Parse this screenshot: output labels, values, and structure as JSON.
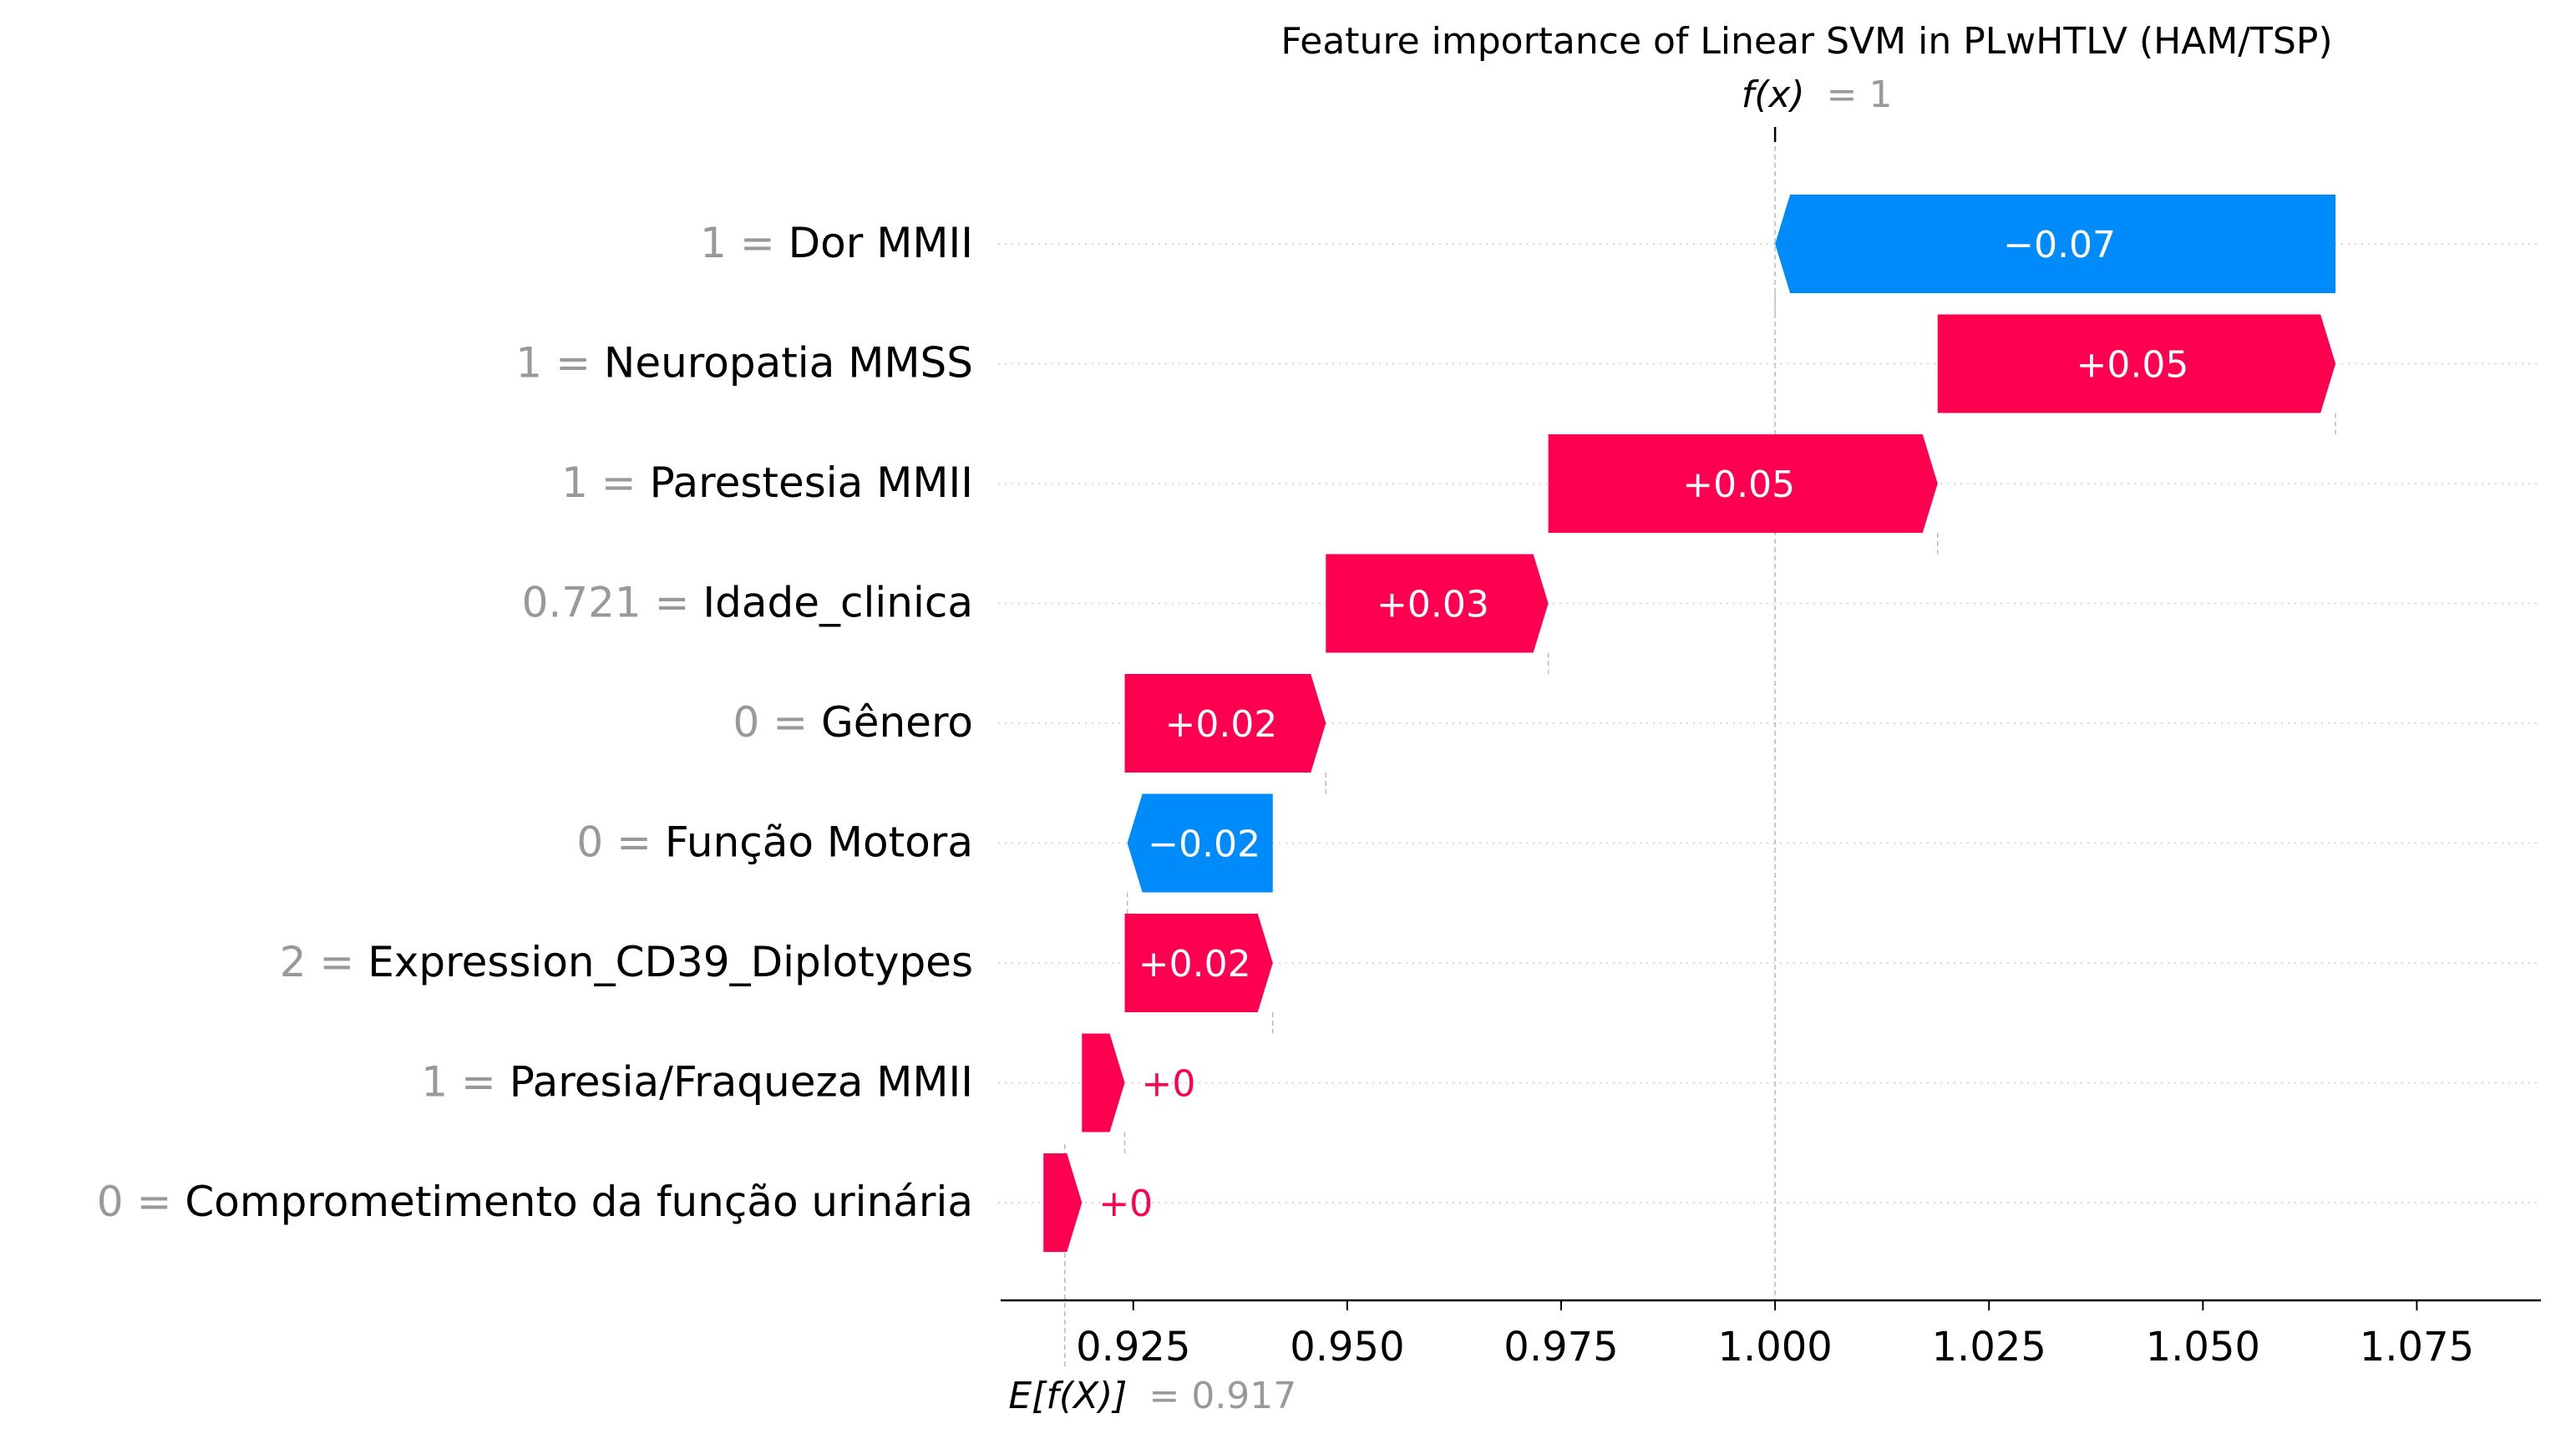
{
  "chart_data": {
    "type": "waterfall",
    "title": "Feature importance of Linear SVM in PLwHTLV (HAM/TSP)",
    "fx": {
      "label": "f(x)",
      "value_text": "= 1",
      "value": 1.0
    },
    "base": {
      "label": "E[f(X)]",
      "value_text": "= 0.917",
      "value": 0.917
    },
    "xlim": [
      0.9095,
      1.0895
    ],
    "xticks": [
      "0.925",
      "0.950",
      "0.975",
      "1.000",
      "1.025",
      "1.050",
      "1.075"
    ],
    "xtick_values": [
      0.925,
      0.95,
      0.975,
      1.0,
      1.025,
      1.05,
      1.075
    ],
    "colors": {
      "positive": "#ff0051",
      "negative": "#008bfb",
      "value_gray": "#999999",
      "text": "#000000"
    },
    "features": [
      {
        "value": "1",
        "name": "Dor MMII",
        "shap": -0.0655,
        "label": "−0.07",
        "start": 1.0655,
        "end": 1.0
      },
      {
        "value": "1",
        "name": "Neuropatia MMSS",
        "shap": 0.0465,
        "label": "+0.05",
        "start": 1.019,
        "end": 1.0655
      },
      {
        "value": "1",
        "name": "Parestesia MMII",
        "shap": 0.0455,
        "label": "+0.05",
        "start": 0.9735,
        "end": 1.019
      },
      {
        "value": "0.721",
        "name": "Idade_clinica",
        "shap": 0.026,
        "label": "+0.03",
        "start": 0.9475,
        "end": 0.9735
      },
      {
        "value": "0",
        "name": "Gênero",
        "shap": 0.0235,
        "label": "+0.02",
        "start": 0.924,
        "end": 0.9475
      },
      {
        "value": "0",
        "name": "Função Motora",
        "shap": -0.017,
        "label": "−0.02",
        "start": 0.9413,
        "end": 0.9243
      },
      {
        "value": "2",
        "name": "Expression_CD39_Diplotypes",
        "shap": 0.0173,
        "label": "+0.02",
        "start": 0.924,
        "end": 0.9413
      },
      {
        "value": "1",
        "name": "Paresia/Fraqueza MMII",
        "shap": 0.005,
        "label": "+0",
        "start": 0.919,
        "end": 0.924
      },
      {
        "value": "0",
        "name": "Comprometimento da função urinária",
        "shap": 0.0045,
        "label": "+0",
        "start": 0.9145,
        "end": 0.919
      }
    ]
  }
}
